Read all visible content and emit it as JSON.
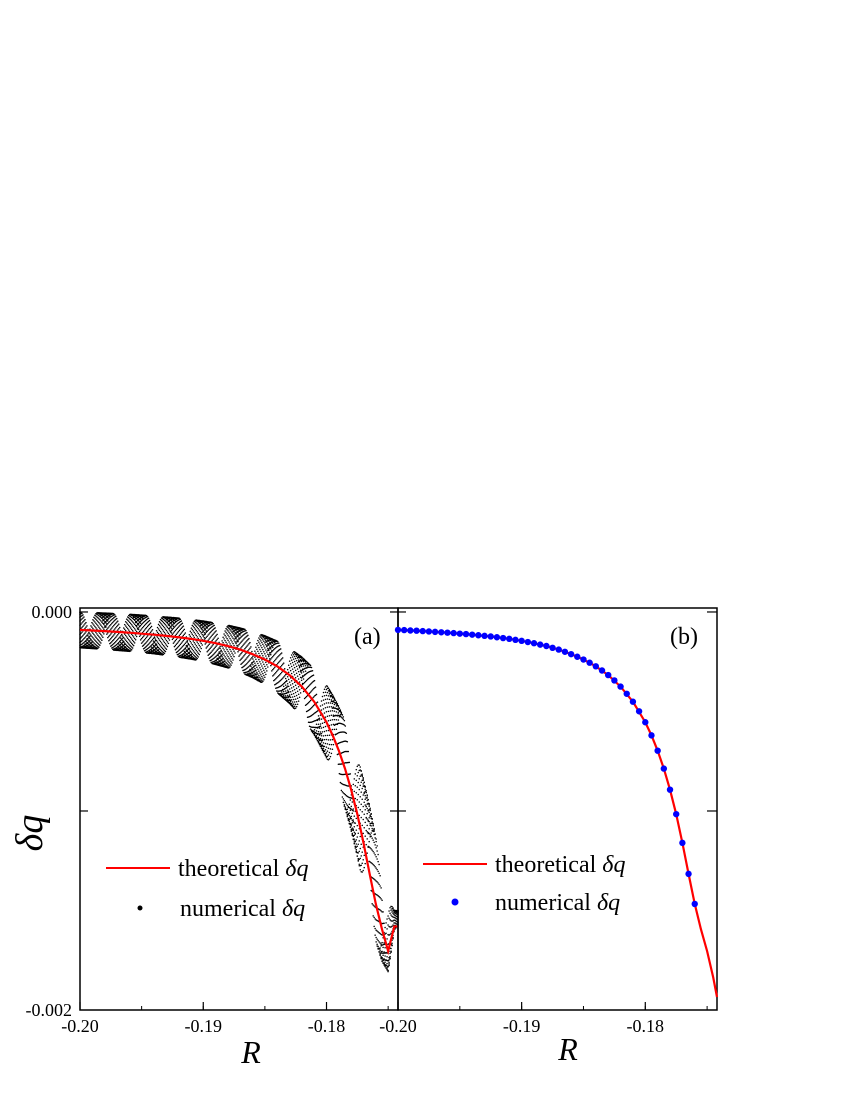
{
  "chart_data": [
    {
      "panel": "(a)",
      "type": "line",
      "xlabel": "R",
      "ylabel": "δq",
      "xlim": [
        -0.2,
        -0.1742
      ],
      "ylim": [
        -0.002,
        2e-05
      ],
      "x_ticks": [
        -0.2,
        -0.19,
        -0.18
      ],
      "x_tick_labels": [
        "-0.20",
        "-0.19",
        "-0.18"
      ],
      "y_ticks": [
        0.0,
        -0.002
      ],
      "y_tick_labels": [
        "0.000",
        "-0.002"
      ],
      "legend_position": "lower-left",
      "series": [
        {
          "name": "theoretical δq",
          "kind": "line",
          "color": "#ff0000",
          "x": [
            -0.2,
            -0.199,
            -0.198,
            -0.197,
            -0.196,
            -0.195,
            -0.194,
            -0.193,
            -0.192,
            -0.191,
            -0.19,
            -0.189,
            -0.188,
            -0.187,
            -0.186,
            -0.185,
            -0.184,
            -0.183,
            -0.182,
            -0.181,
            -0.18,
            -0.1795,
            -0.179,
            -0.1785,
            -0.178,
            -0.1775,
            -0.177,
            -0.1765,
            -0.176,
            -0.1755,
            -0.175,
            -0.1745,
            -0.1742
          ],
          "y": [
            -9e-05,
            -9.3e-05,
            -9.6e-05,
            -0.0001,
            -0.000104,
            -0.000109,
            -0.000114,
            -0.00012,
            -0.000127,
            -0.000135,
            -0.000145,
            -0.000157,
            -0.000171,
            -0.000189,
            -0.000212,
            -0.000239,
            -0.000273,
            -0.000317,
            -0.000375,
            -0.000451,
            -0.000554,
            -0.00062,
            -0.000697,
            -0.000787,
            -0.000893,
            -0.001016,
            -0.00116,
            -0.001316,
            -0.001467,
            -0.001594,
            -0.001704,
            -0.00158,
            -0.00158
          ]
        },
        {
          "name": "numerical δq",
          "kind": "points",
          "color": "#000000",
          "x": [
            -0.2,
            -0.199,
            -0.198,
            -0.197,
            -0.196,
            -0.195,
            -0.194,
            -0.193,
            -0.192,
            -0.191,
            -0.19,
            -0.189,
            -0.188,
            -0.187,
            -0.186,
            -0.185,
            -0.184,
            -0.183,
            -0.182,
            -0.181,
            -0.18,
            -0.1795,
            -0.179,
            -0.1785,
            -0.178,
            -0.1775,
            -0.177,
            -0.1765,
            -0.176,
            -0.1755,
            -0.175,
            -0.1745,
            -0.1742
          ],
          "y_upper": [
            0.0,
            -2e-06,
            -5e-06,
            -8e-06,
            -1.1e-05,
            -1.5e-05,
            -2e-05,
            -2.5e-05,
            -3e-05,
            -3.7e-05,
            -4.5e-05,
            -5.5e-05,
            -6.6e-05,
            -8e-05,
            -9.7e-05,
            -0.000119,
            -0.000146,
            -0.000181,
            -0.000226,
            -0.000285,
            -0.000365,
            -0.000416,
            -0.000475,
            -0.000545,
            -0.000628,
            -0.000724,
            -0.000838,
            -0.000973,
            -0.001131,
            -0.001298,
            -0.001435,
            -0.0015,
            -0.0015
          ],
          "y_lower": [
            -0.00018,
            -0.000184,
            -0.000188,
            -0.000193,
            -0.000198,
            -0.000204,
            -0.00021,
            -0.000218,
            -0.000227,
            -0.000237,
            -0.000249,
            -0.000264,
            -0.000281,
            -0.000303,
            -0.00033,
            -0.000364,
            -0.000406,
            -0.00046,
            -0.000529,
            -0.000617,
            -0.000733,
            -0.000805,
            -0.000889,
            -0.000986,
            -0.001099,
            -0.00123,
            -0.001376,
            -0.001527,
            -0.001657,
            -0.001756,
            -0.001808,
            -0.0016,
            -0.0016
          ]
        }
      ],
      "legend": {
        "theoretical_prefix": "theoretical ",
        "numerical_prefix": "numerical ",
        "symbol": "δq"
      }
    },
    {
      "panel": "(b)",
      "type": "line",
      "xlabel": "R",
      "xlim": [
        -0.2,
        -0.1742
      ],
      "ylim": [
        -0.002,
        2e-05
      ],
      "x_ticks": [
        -0.2,
        -0.19,
        -0.18
      ],
      "x_tick_labels": [
        "-0.20",
        "-0.19",
        "-0.18"
      ],
      "legend_position": "lower-left",
      "series": [
        {
          "name": "theoretical δq",
          "kind": "line",
          "color": "#ff0000",
          "x": [
            -0.2,
            -0.199,
            -0.198,
            -0.197,
            -0.196,
            -0.195,
            -0.194,
            -0.193,
            -0.192,
            -0.191,
            -0.19,
            -0.189,
            -0.188,
            -0.187,
            -0.186,
            -0.185,
            -0.184,
            -0.183,
            -0.182,
            -0.181,
            -0.18,
            -0.1795,
            -0.179,
            -0.1785,
            -0.178,
            -0.1775,
            -0.177,
            -0.1765,
            -0.176,
            -0.1755,
            -0.175,
            -0.1745,
            -0.1742
          ],
          "y": [
            -9e-05,
            -9.3e-05,
            -9.6e-05,
            -0.0001,
            -0.000104,
            -0.000109,
            -0.000114,
            -0.00012,
            -0.000127,
            -0.000135,
            -0.000145,
            -0.000157,
            -0.000171,
            -0.000189,
            -0.000212,
            -0.000239,
            -0.000273,
            -0.000317,
            -0.000375,
            -0.000451,
            -0.000554,
            -0.00062,
            -0.000697,
            -0.000787,
            -0.000893,
            -0.001016,
            -0.00116,
            -0.001316,
            -0.001467,
            -0.001594,
            -0.001704,
            -0.001838,
            -0.001935
          ]
        },
        {
          "name": "numerical δq",
          "kind": "points",
          "color": "#0000ff",
          "x": [
            -0.2,
            -0.1995,
            -0.199,
            -0.1985,
            -0.198,
            -0.1975,
            -0.197,
            -0.1965,
            -0.196,
            -0.1955,
            -0.195,
            -0.1945,
            -0.194,
            -0.1935,
            -0.193,
            -0.1925,
            -0.192,
            -0.1915,
            -0.191,
            -0.1905,
            -0.19,
            -0.1895,
            -0.189,
            -0.1885,
            -0.188,
            -0.1875,
            -0.187,
            -0.1865,
            -0.186,
            -0.1855,
            -0.185,
            -0.1845,
            -0.184,
            -0.1835,
            -0.183,
            -0.1825,
            -0.182,
            -0.1815,
            -0.181,
            -0.1805,
            -0.18,
            -0.1795,
            -0.179,
            -0.1785,
            -0.178,
            -0.1775,
            -0.177,
            -0.1765,
            -0.176
          ],
          "y": [
            -9e-05,
            -9.1e-05,
            -9.3e-05,
            -9.4e-05,
            -9.6e-05,
            -9.8e-05,
            -0.0001,
            -0.000102,
            -0.000104,
            -0.000106,
            -0.000109,
            -0.000111,
            -0.000114,
            -0.000117,
            -0.00012,
            -0.000123,
            -0.000127,
            -0.000131,
            -0.000135,
            -0.00014,
            -0.000145,
            -0.000151,
            -0.000157,
            -0.000164,
            -0.000171,
            -0.00018,
            -0.000189,
            -0.0002,
            -0.000212,
            -0.000225,
            -0.000239,
            -0.000255,
            -0.000273,
            -0.000294,
            -0.000317,
            -0.000344,
            -0.000375,
            -0.000411,
            -0.000451,
            -0.000499,
            -0.000554,
            -0.00062,
            -0.000697,
            -0.000787,
            -0.000893,
            -0.001016,
            -0.00116,
            -0.001316,
            -0.001467
          ]
        }
      ],
      "legend": {
        "theoretical_prefix": "theoretical ",
        "numerical_prefix": "numerical ",
        "symbol": "δq"
      }
    }
  ]
}
